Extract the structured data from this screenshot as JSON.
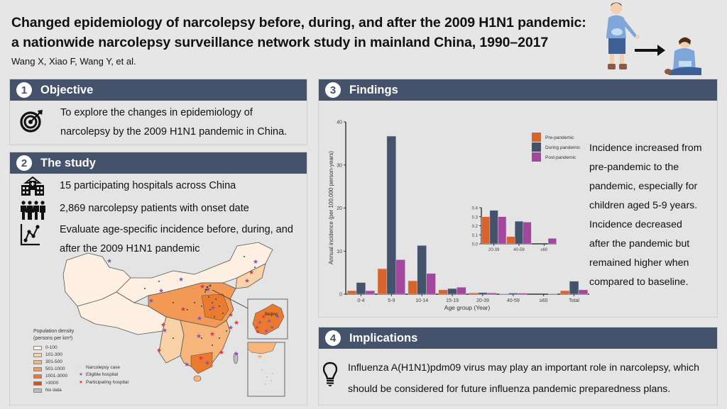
{
  "header": {
    "title_line1": "Changed epidemiology of narcolepsy before, during, and after the 2009 H1N1 pandemic:",
    "title_line2": "a nationwide narcolepsy surveillance network study in mainland China, 1990–2017",
    "authors": "Wang X, Xiao F, Wang Y, et al.",
    "illustration": "child-standing-then-collapsing-illustration"
  },
  "sections": {
    "objective": {
      "number": "1",
      "title": "Objective",
      "icon": "target-icon",
      "text_line1": "To explore the changes in epidemiology of",
      "text_line2": "narcolepsy by the 2009 H1N1 pandemic in China."
    },
    "study": {
      "number": "2",
      "title": "The study",
      "items": [
        {
          "icon": "hospital-icon",
          "text": "15 participating hospitals across China"
        },
        {
          "icon": "people-icon",
          "text": "2,869 narcolepsy patients with onset date"
        },
        {
          "icon": "line-chart-icon",
          "text_line1": "Evaluate age-specific incidence before, during, and",
          "text_line2": "after the 2009 H1N1 pandemic"
        }
      ],
      "map": {
        "legend_title_line1": "Population density",
        "legend_title_line2": "(persons per km²)",
        "density_classes": [
          {
            "label": "0-100",
            "color": "#fdf0e2"
          },
          {
            "label": "101-300",
            "color": "#f9d2a8"
          },
          {
            "label": "301-500",
            "color": "#f6b57a"
          },
          {
            "label": "501-1000",
            "color": "#f29a55"
          },
          {
            "label": "1001-3000",
            "color": "#ea7a2e"
          },
          {
            "label": ">3000",
            "color": "#d2531c"
          },
          {
            "label": "No data",
            "color": "#bdbdbd"
          }
        ],
        "markers": [
          {
            "symbol": "·",
            "label": "Narcolepsy case",
            "color": "#1f4f6a"
          },
          {
            "symbol": "★",
            "label": "Eligible hospital",
            "color": "#8a4fc6"
          },
          {
            "symbol": "★",
            "label": "Participating hospital",
            "color": "#e0304a"
          }
        ],
        "inset_label": "Beijing"
      }
    },
    "findings": {
      "number": "3",
      "title": "Findings",
      "text": [
        "Incidence increased from",
        "pre-pandemic to the",
        "pandemic, especially for",
        "children aged 5-9 years.",
        "Incidence decreased",
        "after the pandemic but",
        "remained higher when",
        "compared to baseline."
      ]
    },
    "implications": {
      "number": "4",
      "title": "Implications",
      "icon": "lightbulb-icon",
      "text_line1": "Influenza A(H1N1)pdm09 virus may play an important role in narcolepsy, which",
      "text_line2": "should be considered for future influenza pandemic preparedness plans."
    }
  },
  "chart_data": [
    {
      "type": "bar",
      "title": "",
      "xlabel": "Age group (Year)",
      "ylabel": "Annual incidence (per 100,000 person-years)",
      "ylim": [
        0,
        40
      ],
      "yticks": [
        0,
        10,
        20,
        30,
        40
      ],
      "categories": [
        "0-4",
        "5-9",
        "10-14",
        "15-19",
        "20-39",
        "40-59",
        "≥60",
        "Total"
      ],
      "series": [
        {
          "name": "Pre-pandemic",
          "color": "#d9632a",
          "values": [
            0.8,
            5.9,
            3.1,
            1.0,
            0.3,
            0.08,
            0.0,
            0.8
          ]
        },
        {
          "name": "During pandemic",
          "color": "#44526b",
          "values": [
            2.7,
            36.7,
            11.3,
            1.3,
            0.37,
            0.25,
            0.0,
            3.0
          ]
        },
        {
          "name": "Post-pandemic",
          "color": "#a2479c",
          "values": [
            0.8,
            8.0,
            4.8,
            1.6,
            0.3,
            0.24,
            0.06,
            1.0
          ]
        }
      ],
      "legend_position": "top-right",
      "grid": false
    },
    {
      "type": "bar",
      "title": "inset",
      "xlabel": "",
      "ylabel": "",
      "ylim": [
        0,
        0.4
      ],
      "yticks": [
        "0.0",
        "0.1",
        "0.2",
        "0.3",
        "0.4"
      ],
      "categories": [
        "20-39",
        "40-59",
        "≥60"
      ],
      "series": [
        {
          "name": "Pre-pandemic",
          "color": "#d9632a",
          "values": [
            0.3,
            0.08,
            0.0
          ]
        },
        {
          "name": "During pandemic",
          "color": "#44526b",
          "values": [
            0.37,
            0.25,
            0.0
          ]
        },
        {
          "name": "Post-pandemic",
          "color": "#a2479c",
          "values": [
            0.3,
            0.24,
            0.06
          ]
        }
      ],
      "grid": false
    }
  ]
}
